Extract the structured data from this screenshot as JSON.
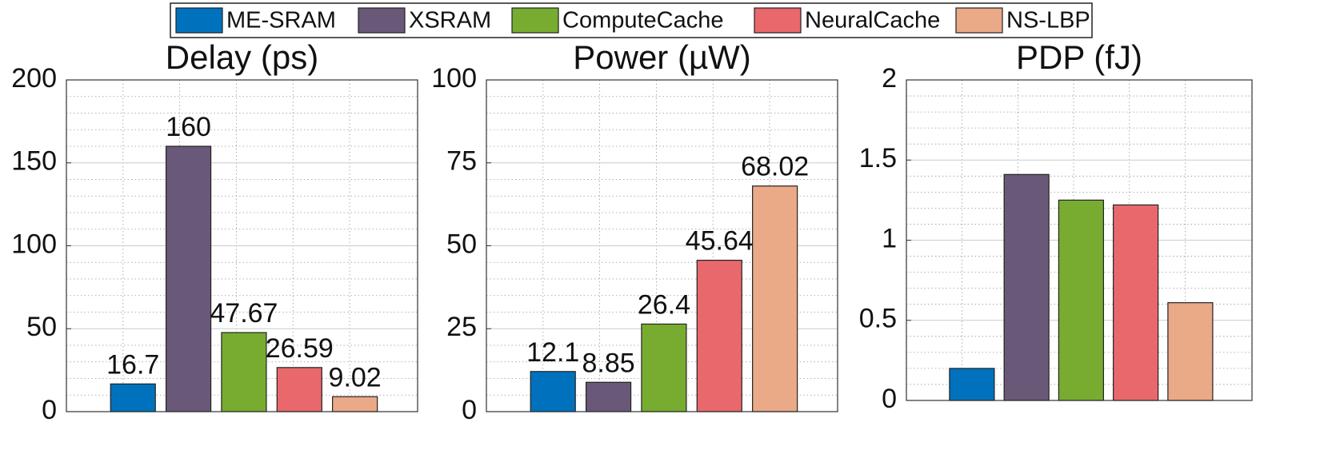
{
  "legend": [
    {
      "name": "ME-SRAM",
      "color": "#0072bd"
    },
    {
      "name": "XSRAM",
      "color": "#6a5878"
    },
    {
      "name": "ComputeCache",
      "color": "#77ac30"
    },
    {
      "name": "NeuralCache",
      "color": "#e8686c"
    },
    {
      "name": "NS-LBP",
      "color": "#eaa987"
    }
  ],
  "chart_data": [
    {
      "type": "bar",
      "title": "Delay (ps)",
      "values": [
        16.7,
        160,
        47.67,
        26.59,
        9.02
      ],
      "data_labels": true,
      "ylim": [
        0,
        200
      ],
      "yticks": [
        0,
        50,
        100,
        150,
        200
      ],
      "grid": true
    },
    {
      "type": "bar",
      "title": "Power (µW)",
      "values": [
        12.1,
        8.85,
        26.4,
        45.64,
        68.02
      ],
      "data_labels": true,
      "ylim": [
        0,
        100
      ],
      "yticks": [
        0,
        25,
        50,
        75,
        100
      ],
      "grid": true
    },
    {
      "type": "bar",
      "title": "PDP (fJ)",
      "values": [
        0.2,
        1.41,
        1.25,
        1.22,
        0.61
      ],
      "data_labels": false,
      "ylim": [
        0,
        2
      ],
      "yticks": [
        0,
        0.5,
        1,
        1.5,
        2
      ],
      "grid": true
    }
  ]
}
